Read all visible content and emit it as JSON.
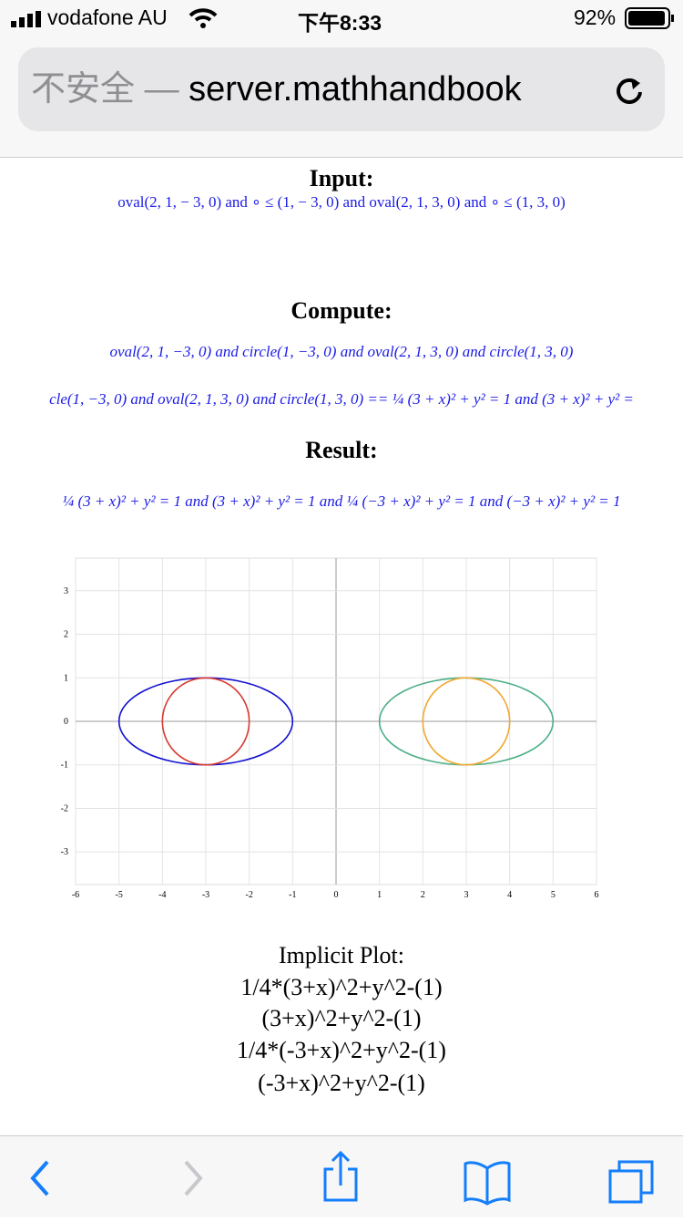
{
  "status_bar": {
    "carrier": "vodafone AU",
    "time": "下午8:33",
    "battery": "92%"
  },
  "address_bar": {
    "security": "不安全",
    "separator": "—",
    "url": "server.mathhandbook"
  },
  "sections": [
    {
      "heading": "Input:",
      "lines": [
        "oval(2, 1,  − 3, 0)  and  ∘ ≤ (1,  − 3, 0)  and  oval(2, 1, 3, 0)  and  ∘ ≤ (1, 3, 0)"
      ]
    },
    {
      "heading": "Compute:",
      "lines": [
        "oval(2, 1, −3, 0) and circle(1, −3, 0) and oval(2, 1, 3, 0) and circle(1, 3, 0)",
        "cle(1, −3, 0) and oval(2, 1, 3, 0) and circle(1, 3, 0) == ¼ (3 + x)² + y² = 1 and (3 + x)² + y² ="
      ]
    },
    {
      "heading": "Result:",
      "lines": [
        "¼ (3 + x)² + y² = 1 and (3 + x)² + y² = 1 and ¼ (−3 + x)² + y² = 1 and (−3 + x)² + y² = 1"
      ]
    }
  ],
  "plot": {
    "xlim": [
      -6,
      6
    ],
    "ylim": [
      -3.75,
      3.75
    ],
    "xticks": [
      -6,
      -5,
      -4,
      -3,
      -2,
      -1,
      0,
      1,
      2,
      3,
      4,
      5,
      6
    ],
    "yticks": [
      -3,
      -2,
      -1,
      0,
      1,
      2,
      3
    ],
    "grid": true,
    "curves": [
      {
        "color": "#1010d0",
        "cx": -3,
        "cy": 0,
        "rx": 2,
        "ry": 1
      },
      {
        "color": "#d83a32",
        "cx": -3,
        "cy": 0,
        "rx": 1,
        "ry": 1
      },
      {
        "color": "#4caf85",
        "cx": 3,
        "cy": 0,
        "rx": 2,
        "ry": 1
      },
      {
        "color": "#f0a830",
        "cx": 3,
        "cy": 0,
        "rx": 1,
        "ry": 1
      }
    ],
    "title": "Implicit Plot:",
    "equations": [
      "1/4*(3+x)^2+y^2-(1)",
      "(3+x)^2+y^2-(1)",
      "1/4*(-3+x)^2+y^2-(1)",
      "(-3+x)^2+y^2-(1)"
    ]
  }
}
